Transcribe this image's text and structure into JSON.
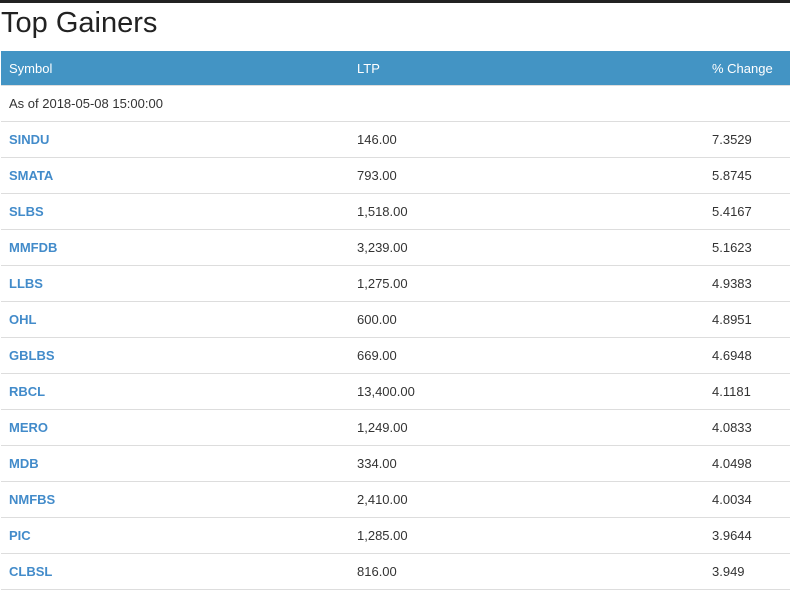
{
  "title": "Top Gainers",
  "headers": {
    "symbol": "Symbol",
    "ltp": "LTP",
    "change": "% Change"
  },
  "as_of": "As of 2018-05-08 15:00:00",
  "rows": [
    {
      "symbol": "SINDU",
      "ltp": "146.00",
      "change": "7.3529"
    },
    {
      "symbol": "SMATA",
      "ltp": "793.00",
      "change": "5.8745"
    },
    {
      "symbol": "SLBS",
      "ltp": "1,518.00",
      "change": "5.4167"
    },
    {
      "symbol": "MMFDB",
      "ltp": "3,239.00",
      "change": "5.1623"
    },
    {
      "symbol": "LLBS",
      "ltp": "1,275.00",
      "change": "4.9383"
    },
    {
      "symbol": "OHL",
      "ltp": "600.00",
      "change": "4.8951"
    },
    {
      "symbol": "GBLBS",
      "ltp": "669.00",
      "change": "4.6948"
    },
    {
      "symbol": "RBCL",
      "ltp": "13,400.00",
      "change": "4.1181"
    },
    {
      "symbol": "MERO",
      "ltp": "1,249.00",
      "change": "4.0833"
    },
    {
      "symbol": "MDB",
      "ltp": "334.00",
      "change": "4.0498"
    },
    {
      "symbol": "NMFBS",
      "ltp": "2,410.00",
      "change": "4.0034"
    },
    {
      "symbol": "PIC",
      "ltp": "1,285.00",
      "change": "3.9644"
    },
    {
      "symbol": "CLBSL",
      "ltp": "816.00",
      "change": "3.949"
    }
  ],
  "colors": {
    "header_bg": "#4394c4",
    "link": "#428bca"
  }
}
